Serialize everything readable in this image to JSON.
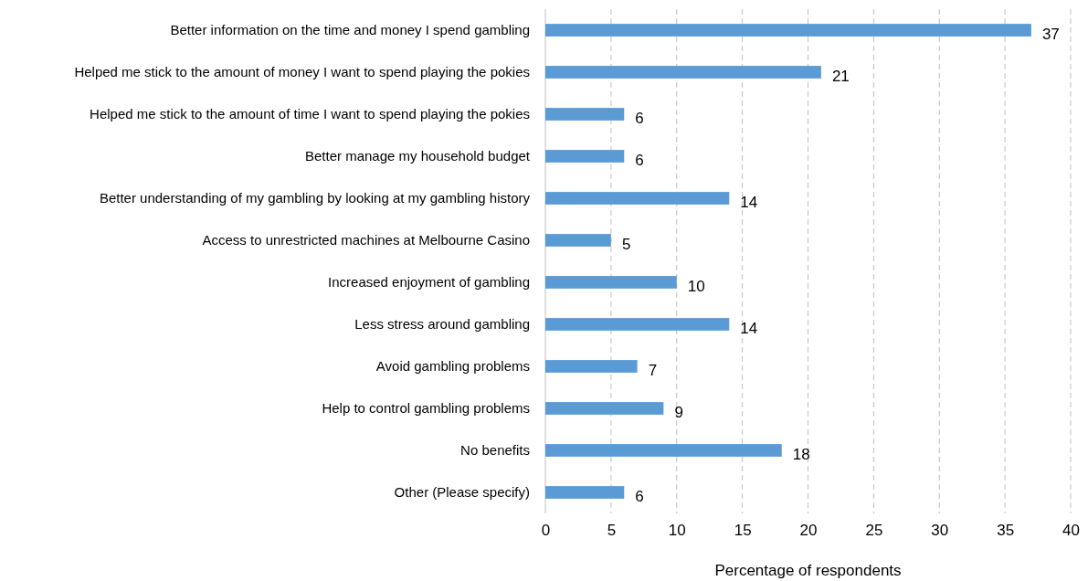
{
  "chart_data": {
    "type": "bar",
    "orientation": "horizontal",
    "xlabel": "Percentage of respondents",
    "categories": [
      "Better information on the time and money I spend gambling",
      "Helped me stick to the amount of money I want to spend playing the pokies",
      "Helped me stick to the amount of time I want to spend playing the pokies",
      "Better manage my household budget",
      "Better understanding of my gambling by looking at my gambling history",
      "Access to unrestricted machines at Melbourne Casino",
      "Increased enjoyment of gambling",
      "Less stress around gambling",
      "Avoid gambling problems",
      "Help to control gambling problems",
      "No benefits",
      "Other (Please specify)"
    ],
    "values": [
      37,
      21,
      6,
      6,
      14,
      5,
      10,
      14,
      7,
      9,
      18,
      6
    ],
    "color": "#5b9bd5",
    "xlim": [
      0,
      40
    ],
    "xticks": [
      0,
      5,
      10,
      15,
      20,
      25,
      30,
      35,
      40
    ],
    "grid": "x",
    "data_labels": true
  }
}
